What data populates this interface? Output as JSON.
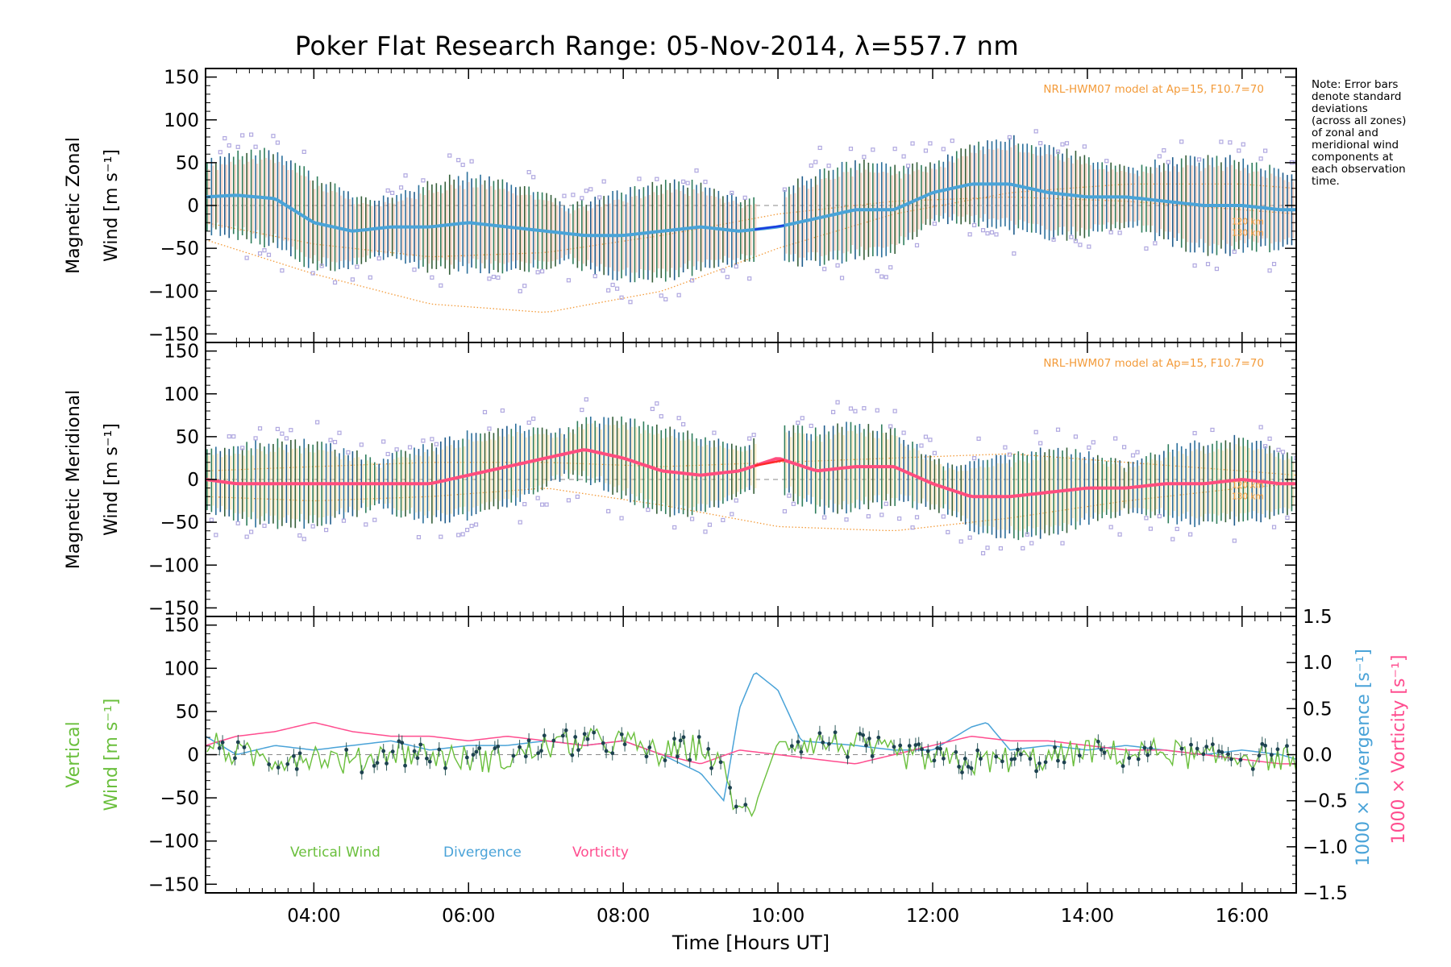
{
  "title": "Poker Flat Research Range: 05-Nov-2014, λ=557.7 nm",
  "note_lines": [
    "Note: Error bars",
    "denote standard",
    "deviations",
    "(across all zones)",
    "of zonal and",
    "meridional wind",
    "components at",
    "each observation",
    "time."
  ],
  "colors": {
    "zonal": "#4aa3d8",
    "zonal_gap": "#1a3de0",
    "meridional": "#ff4d7e",
    "meridional_gap": "#ff2a2a",
    "vertical": "#6abf3c",
    "divergence": "#4aa3d8",
    "vorticity": "#ff4d8f",
    "model": "#f39b3a",
    "zone_points": "#b0a8e0",
    "model_label": "#f39b3a"
  },
  "x_axis": {
    "label": "Time [Hours UT]",
    "range": [
      2.6,
      16.7
    ],
    "tick_labels": [
      {
        "x": 4,
        "label": "04:00"
      },
      {
        "x": 6,
        "label": "06:00"
      },
      {
        "x": 8,
        "label": "08:00"
      },
      {
        "x": 10,
        "label": "10:00"
      },
      {
        "x": 12,
        "label": "12:00"
      },
      {
        "x": 14,
        "label": "14:00"
      },
      {
        "x": 16,
        "label": "16:00"
      }
    ]
  },
  "panels": {
    "zonal": {
      "ylabel_line1": "Magnetic Zonal",
      "ylabel_line2": "Wind [m s⁻¹]",
      "model_label": "NRL-HWM07 model at Ap=15, F10.7=70",
      "alt_labels": [
        "120 km",
        "130 km"
      ]
    },
    "meridional": {
      "ylabel_line1": "Magnetic Meridional",
      "ylabel_line2": "Wind [m s⁻¹]",
      "model_label": "NRL-HWM07 model at Ap=15, F10.7=70",
      "alt_labels": [
        "120 km",
        "130 km"
      ]
    },
    "vertical": {
      "ylabel_line1": "Vertical",
      "ylabel_line2": "Wind [m s⁻¹]",
      "right_label_div": "1000 × Divergence [s⁻¹]",
      "right_label_vort": "1000 × Vorticity [s⁻¹]",
      "legend": [
        "Vertical Wind",
        "Divergence",
        "Vorticity"
      ]
    }
  },
  "y_ticks_left": [
    "150",
    "100",
    "50",
    "0",
    "−50",
    "−100",
    "−150"
  ],
  "y_ticks_right": [
    "1.5",
    "1.0",
    "0.5",
    "0.0",
    "−0.5",
    "−1.0",
    "−1.5"
  ],
  "chart_data": [
    {
      "type": "line",
      "title": "Poker Flat Research Range: 05-Nov-2014, λ=557.7 nm",
      "xlabel": "Time [Hours UT]",
      "ylabel": "Magnetic Zonal Wind [m s⁻¹]",
      "ylim": [
        -160,
        160
      ],
      "series": [
        {
          "x": [
            2.6,
            3.0,
            3.5,
            4.0,
            4.5,
            5.0,
            5.5,
            6.0,
            6.5,
            7.0,
            7.5,
            8.0,
            8.5,
            9.0,
            9.5,
            10.0,
            10.5,
            11.0,
            11.5,
            12.0,
            12.5,
            13.0,
            13.5,
            14.0,
            14.5,
            15.0,
            15.5,
            16.0,
            16.5,
            16.7
          ],
          "values": [
            10,
            12,
            8,
            -20,
            -30,
            -25,
            -25,
            -20,
            -25,
            -30,
            -35,
            -35,
            -30,
            -25,
            -30,
            -25,
            -15,
            -5,
            -5,
            15,
            25,
            25,
            15,
            10,
            10,
            5,
            0,
            0,
            -5,
            -5
          ]
        }
      ],
      "model_curves": [
        {
          "name": "120 km",
          "x": [
            2.6,
            4.0,
            5.5,
            7.0,
            8.5,
            10.0,
            11.5,
            13.0,
            14.5,
            16.0,
            16.7
          ],
          "values": [
            -40,
            -80,
            -115,
            -125,
            -100,
            -50,
            -10,
            15,
            25,
            25,
            20
          ]
        },
        {
          "name": "130 km",
          "x": [
            2.6,
            4.0,
            5.5,
            7.0,
            8.5,
            10.0,
            11.5,
            13.0,
            14.5,
            16.0,
            16.7
          ],
          "values": [
            -20,
            -45,
            -60,
            -55,
            -35,
            -10,
            5,
            10,
            5,
            -5,
            -10
          ]
        }
      ]
    },
    {
      "type": "line",
      "xlabel": "Time [Hours UT]",
      "ylabel": "Magnetic Meridional Wind [m s⁻¹]",
      "ylim": [
        -160,
        160
      ],
      "series": [
        {
          "x": [
            2.6,
            3.0,
            3.5,
            4.0,
            4.5,
            5.0,
            5.5,
            6.0,
            6.5,
            7.0,
            7.5,
            8.0,
            8.5,
            9.0,
            9.5,
            10.0,
            10.5,
            11.0,
            11.5,
            12.0,
            12.5,
            13.0,
            13.5,
            14.0,
            14.5,
            15.0,
            15.5,
            16.0,
            16.5,
            16.7
          ],
          "values": [
            0,
            -5,
            -5,
            -5,
            -5,
            -5,
            -5,
            5,
            15,
            25,
            35,
            25,
            10,
            5,
            10,
            25,
            10,
            15,
            15,
            -5,
            -20,
            -20,
            -15,
            -10,
            -10,
            -5,
            -5,
            0,
            -5,
            -5
          ]
        }
      ],
      "model_curves": [
        {
          "name": "120 km",
          "x": [
            2.6,
            4.0,
            5.5,
            7.0,
            8.5,
            10.0,
            11.5,
            13.0,
            14.5,
            16.0,
            16.7
          ],
          "values": [
            -20,
            -25,
            -20,
            -10,
            -30,
            -55,
            -60,
            -45,
            -25,
            -10,
            -5
          ]
        },
        {
          "name": "130 km",
          "x": [
            2.6,
            4.0,
            5.5,
            7.0,
            8.5,
            10.0,
            11.5,
            13.0,
            14.5,
            16.0,
            16.7
          ],
          "values": [
            10,
            15,
            20,
            20,
            15,
            20,
            25,
            30,
            20,
            10,
            5
          ]
        }
      ]
    },
    {
      "type": "line",
      "xlabel": "Time [Hours UT]",
      "ylabel": "Vertical Wind [m s⁻¹]",
      "ylim": [
        -160,
        160
      ],
      "y2lim": [
        -1.5,
        1.5
      ],
      "series": [
        {
          "name": "Vertical Wind",
          "x": [
            2.6,
            3.0,
            3.5,
            4.0,
            4.5,
            5.0,
            5.5,
            6.0,
            6.5,
            7.0,
            7.5,
            8.0,
            8.5,
            9.0,
            9.3,
            9.5,
            9.7,
            10.0,
            10.5,
            11.0,
            11.5,
            12.0,
            12.5,
            13.0,
            13.5,
            14.0,
            14.5,
            15.0,
            15.5,
            16.0,
            16.5,
            16.7
          ],
          "values": [
            15,
            0,
            -5,
            0,
            -10,
            5,
            0,
            -5,
            -5,
            10,
            15,
            15,
            0,
            10,
            -20,
            -70,
            -60,
            15,
            15,
            10,
            0,
            -5,
            -10,
            -5,
            -5,
            5,
            0,
            5,
            -5,
            0,
            -5,
            -5
          ]
        },
        {
          "name": "Divergence",
          "axis": "right",
          "x": [
            2.6,
            3.0,
            3.5,
            4.0,
            4.5,
            5.0,
            5.5,
            6.0,
            6.5,
            7.0,
            7.5,
            8.0,
            8.5,
            9.0,
            9.3,
            9.5,
            9.7,
            10.0,
            10.3,
            11.0,
            11.5,
            12.0,
            12.5,
            12.7,
            13.0,
            13.5,
            14.0,
            14.5,
            15.0,
            15.5,
            16.0,
            16.5,
            16.7
          ],
          "values": [
            0.2,
            0.0,
            0.1,
            0.05,
            0.1,
            0.15,
            0.05,
            0.1,
            0.1,
            0.15,
            0.1,
            0.15,
            0.0,
            -0.2,
            -0.5,
            0.5,
            0.9,
            0.7,
            0.15,
            0.1,
            0.05,
            0.05,
            0.3,
            0.35,
            0.05,
            0.1,
            0.05,
            0.1,
            0.05,
            0.0,
            0.05,
            0.0,
            -0.05
          ]
        },
        {
          "name": "Vorticity",
          "axis": "right",
          "x": [
            2.6,
            3.0,
            3.5,
            4.0,
            4.5,
            5.0,
            5.5,
            6.0,
            6.5,
            7.0,
            7.5,
            8.0,
            8.5,
            9.0,
            9.5,
            10.0,
            10.5,
            11.0,
            11.5,
            12.0,
            12.5,
            13.0,
            13.5,
            14.0,
            14.5,
            15.0,
            15.5,
            16.0,
            16.5,
            16.7
          ],
          "values": [
            0.1,
            0.2,
            0.25,
            0.35,
            0.25,
            0.2,
            0.2,
            0.15,
            0.2,
            0.15,
            0.1,
            0.15,
            0.0,
            -0.1,
            0.05,
            0.0,
            -0.05,
            -0.1,
            0.0,
            0.1,
            0.2,
            0.15,
            0.15,
            0.1,
            0.05,
            0.05,
            0.0,
            -0.05,
            -0.1,
            -0.1
          ]
        }
      ]
    }
  ]
}
